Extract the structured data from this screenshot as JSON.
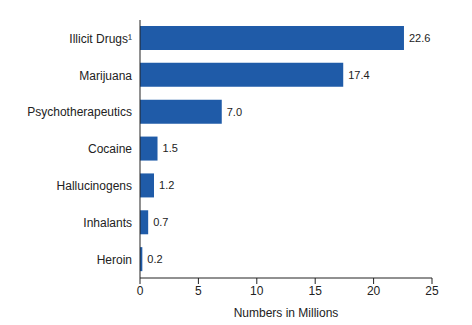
{
  "chart_data": {
    "type": "bar",
    "orientation": "horizontal",
    "categories": [
      "Illicit Drugs¹",
      "Marijuana",
      "Psychotherapeutics",
      "Cocaine",
      "Hallucinogens",
      "Inhalants",
      "Heroin"
    ],
    "values": [
      22.6,
      17.4,
      7.0,
      1.5,
      1.2,
      0.7,
      0.2
    ],
    "value_labels": [
      "22.6",
      "17.4",
      "7.0",
      "1.5",
      "1.2",
      "0.7",
      "0.2"
    ],
    "data_labels": true,
    "color": "#1f5ba8",
    "x_label": "Numbers in Millions",
    "xlim": [
      0,
      25
    ],
    "xticks": [
      0,
      5,
      10,
      15,
      20,
      25
    ],
    "grid": false
  }
}
